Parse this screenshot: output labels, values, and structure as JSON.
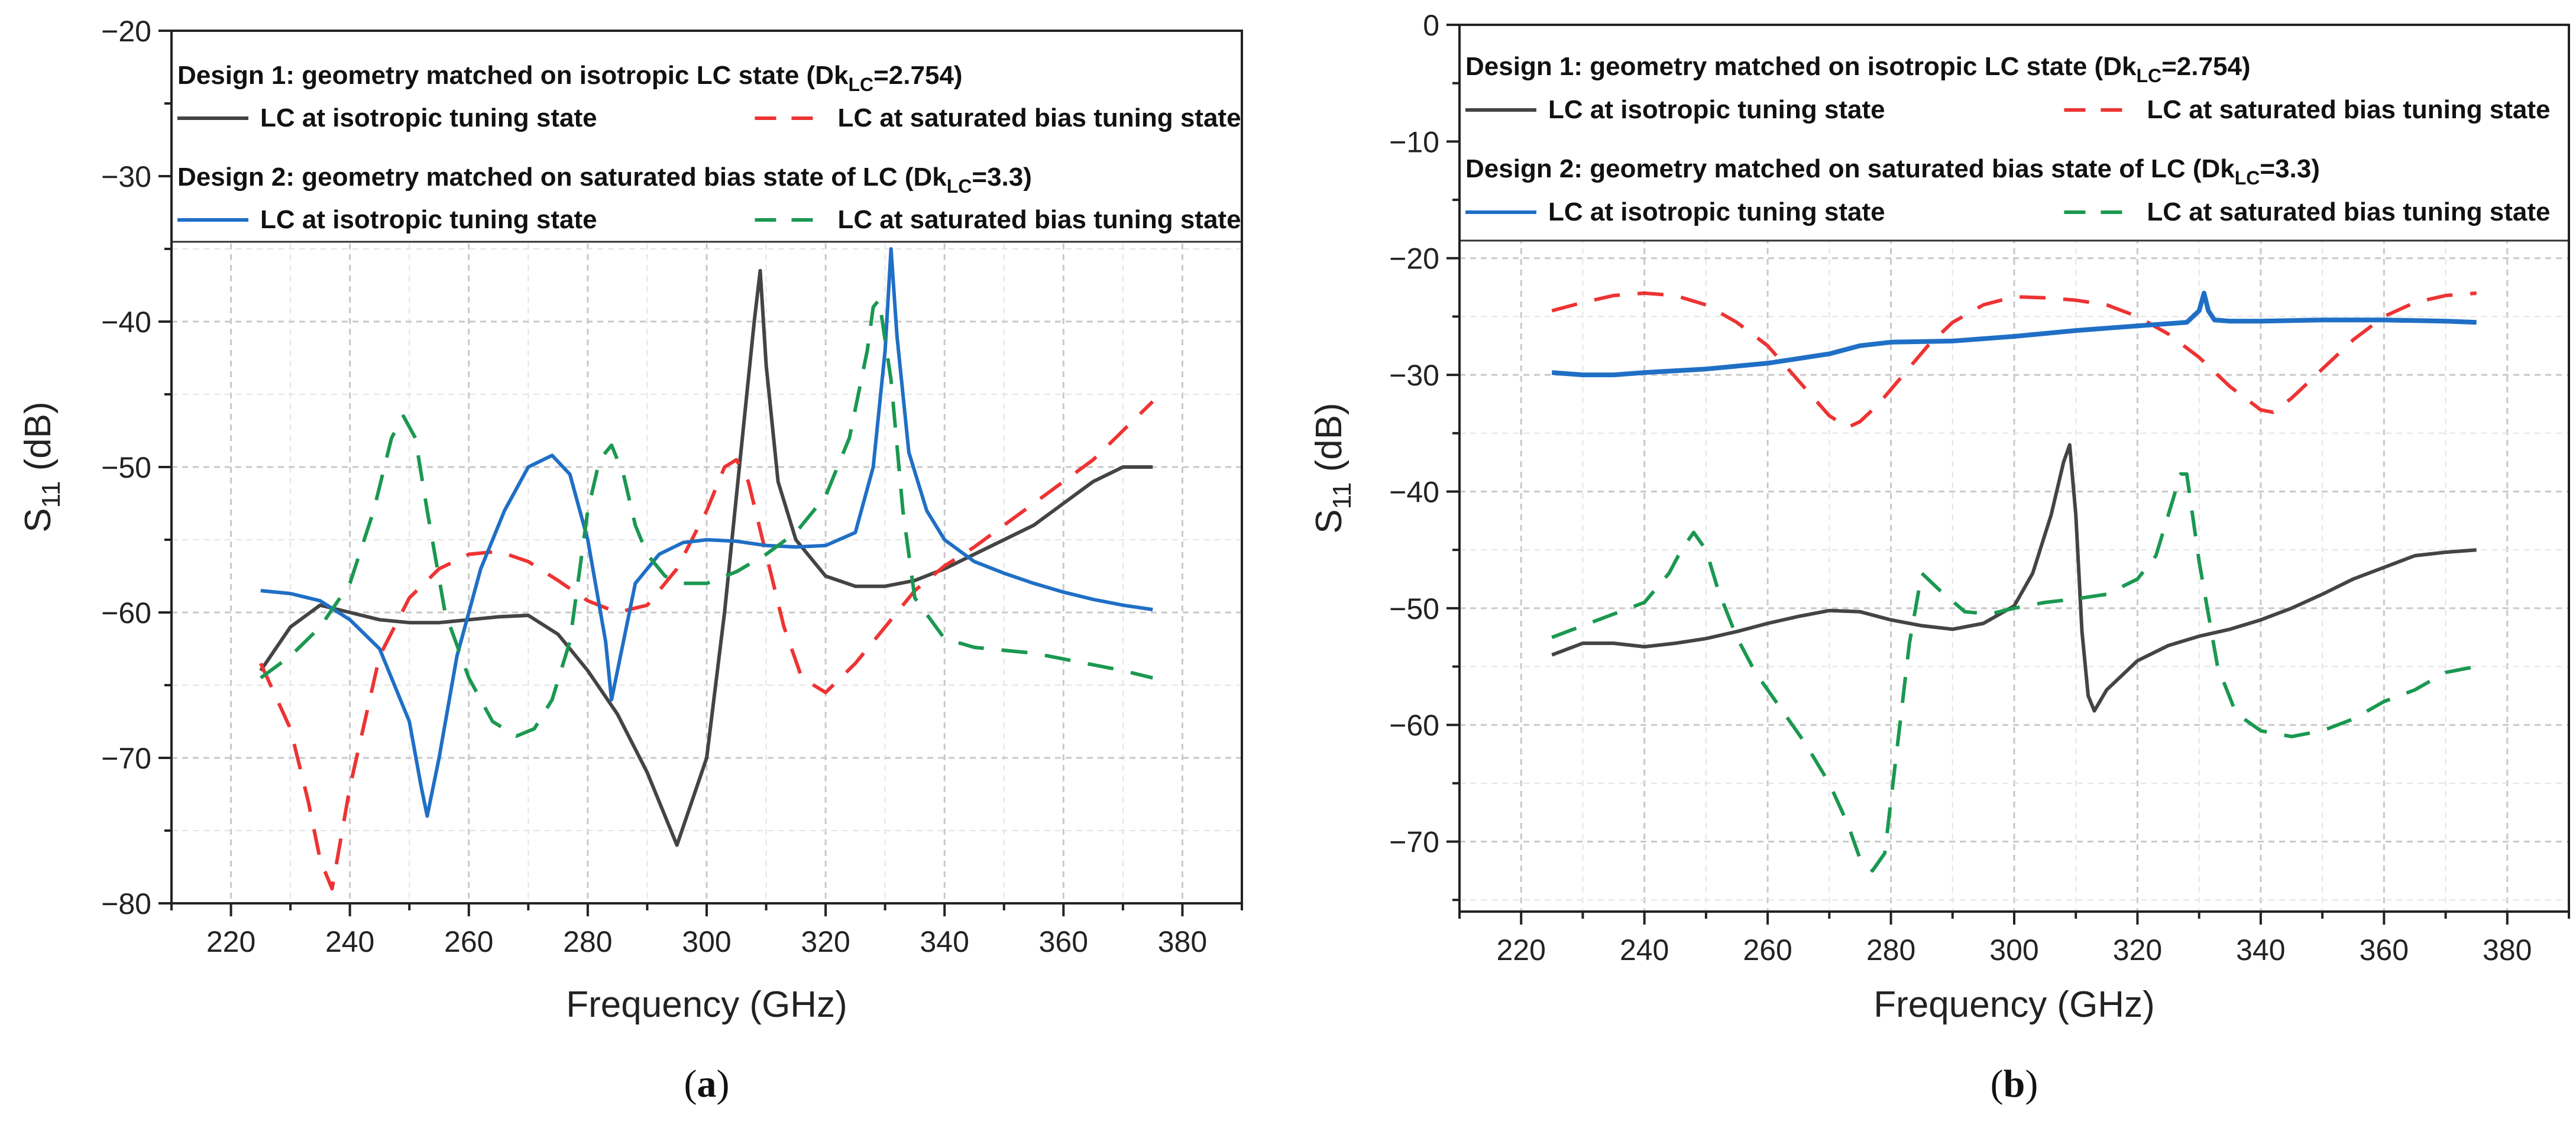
{
  "chart_data": [
    {
      "type": "line",
      "panel_label": "(a)",
      "panel_letter": "a",
      "xlabel": "Frequency (GHz)",
      "ylabel_main": "S",
      "ylabel_sub": "11",
      "ylabel_tail": " (dB)",
      "xlim": [
        210,
        390
      ],
      "ylim": [
        -80,
        -20
      ],
      "xticks": [
        220,
        240,
        260,
        280,
        300,
        320,
        340,
        360,
        380
      ],
      "yticks": [
        -80,
        -70,
        -60,
        -50,
        -40,
        -30,
        -20
      ],
      "grid": true,
      "legend": {
        "position": "top",
        "group1": {
          "prefix": "Design 1: geometry matched on isotropic LC state (Dk",
          "sub": "LC",
          "suffix": "=2.754)"
        },
        "group2": {
          "prefix": "Design 2: geometry matched on saturated bias state of LC (Dk",
          "sub": "LC",
          "suffix": "=3.3)"
        }
      },
      "series": [
        {
          "name": "LC at isotropic tuning state",
          "group": 1,
          "color": "#444444",
          "dash": "solid",
          "x": [
            225,
            230,
            235,
            240,
            245,
            250,
            255,
            260,
            265,
            270,
            275,
            280,
            285,
            290,
            295,
            300,
            303,
            306,
            308,
            309,
            310,
            312,
            315,
            320,
            325,
            330,
            335,
            340,
            345,
            350,
            355,
            360,
            365,
            370,
            375
          ],
          "y": [
            -64,
            -61,
            -59.5,
            -60,
            -60.5,
            -60.7,
            -60.7,
            -60.5,
            -60.3,
            -60.2,
            -61.5,
            -64,
            -67,
            -71,
            -76,
            -70,
            -60,
            -48,
            -40,
            -36.5,
            -43,
            -51,
            -55,
            -57.5,
            -58.2,
            -58.2,
            -57.8,
            -57,
            -56,
            -55,
            -54,
            -52.5,
            -51,
            -50,
            -50
          ]
        },
        {
          "name": "LC at saturated bias tuning state",
          "group": 1,
          "color": "#ee3333",
          "dash": "dashed",
          "x": [
            225,
            230,
            233,
            235,
            237,
            240,
            245,
            250,
            255,
            260,
            265,
            270,
            275,
            280,
            285,
            290,
            295,
            300,
            303,
            305,
            307,
            310,
            313,
            316,
            320,
            325,
            330,
            335,
            340,
            345,
            350,
            355,
            360,
            365,
            370,
            375
          ],
          "y": [
            -63.5,
            -68,
            -73,
            -77,
            -79,
            -72,
            -63,
            -59,
            -57,
            -56,
            -55.8,
            -56.5,
            -57.8,
            -59.2,
            -60,
            -59.5,
            -57,
            -53,
            -50,
            -49.5,
            -51,
            -56,
            -61,
            -64.5,
            -65.5,
            -63.5,
            -61,
            -58.5,
            -56.8,
            -55.5,
            -54,
            -52.5,
            -51,
            -49.5,
            -47.5,
            -45.5
          ]
        },
        {
          "name": "LC at isotropic tuning state",
          "group": 2,
          "color": "#1f6fc5",
          "dash": "solid",
          "x": [
            225,
            230,
            235,
            240,
            245,
            250,
            252,
            253,
            255,
            258,
            262,
            266,
            270,
            274,
            277,
            280,
            283,
            284,
            286,
            288,
            292,
            296,
            300,
            305,
            310,
            315,
            320,
            325,
            328,
            330,
            331,
            332,
            334,
            337,
            340,
            345,
            350,
            355,
            360,
            365,
            370,
            375
          ],
          "y": [
            -58.5,
            -58.7,
            -59.2,
            -60.5,
            -62.5,
            -67.5,
            -72,
            -74,
            -70,
            -63,
            -57,
            -53,
            -50,
            -49.2,
            -50.5,
            -55,
            -62,
            -66,
            -62,
            -58,
            -56,
            -55.2,
            -55,
            -55.1,
            -55.4,
            -55.5,
            -55.4,
            -54.5,
            -50,
            -42,
            -35,
            -41,
            -49,
            -53,
            -55,
            -56.5,
            -57.3,
            -58,
            -58.6,
            -59.1,
            -59.5,
            -59.8
          ]
        },
        {
          "name": "LC at saturated bias tuning state",
          "group": 2,
          "color": "#1a9850",
          "dash": "dashed",
          "x": [
            225,
            230,
            235,
            240,
            244,
            247,
            249,
            251,
            253,
            256,
            260,
            264,
            268,
            271,
            274,
            277,
            280,
            282,
            284,
            286,
            288,
            290,
            293,
            296,
            300,
            305,
            310,
            315,
            320,
            324,
            327,
            328,
            329,
            331,
            333,
            335,
            340,
            345,
            350,
            355,
            360,
            365,
            370,
            375
          ],
          "y": [
            -64.5,
            -63,
            -61,
            -58,
            -53,
            -48,
            -46.5,
            -48,
            -53,
            -60,
            -64.5,
            -67.5,
            -68.5,
            -68,
            -66,
            -62,
            -53,
            -49.5,
            -48.5,
            -50.5,
            -54,
            -56,
            -57.5,
            -58,
            -58,
            -57.2,
            -56,
            -54.5,
            -52,
            -48,
            -42,
            -39,
            -38.5,
            -44,
            -53,
            -59,
            -61.8,
            -62.4,
            -62.6,
            -62.8,
            -63.2,
            -63.6,
            -64,
            -64.5
          ]
        }
      ]
    },
    {
      "type": "line",
      "panel_label": "(b)",
      "panel_letter": "b",
      "xlabel": "Frequency (GHz)",
      "ylabel_main": "S",
      "ylabel_sub": "11",
      "ylabel_tail": " (dB)",
      "xlim": [
        210,
        390
      ],
      "ylim": [
        -76,
        0
      ],
      "xticks": [
        220,
        240,
        260,
        280,
        300,
        320,
        340,
        360,
        380
      ],
      "yticks": [
        -70,
        -60,
        -50,
        -40,
        -30,
        -20,
        -10,
        0
      ],
      "grid": true,
      "legend": {
        "position": "top",
        "group1": {
          "prefix": "Design 1: geometry matched on isotropic LC state (Dk",
          "sub": "LC",
          "suffix": "=2.754)"
        },
        "group2": {
          "prefix": "Design 2: geometry matched on saturated bias state of LC (Dk",
          "sub": "LC",
          "suffix": "=3.3)"
        }
      },
      "series": [
        {
          "name": "LC at isotropic tuning state",
          "group": 1,
          "color": "#444444",
          "dash": "solid",
          "x": [
            225,
            230,
            235,
            240,
            245,
            250,
            255,
            260,
            265,
            270,
            275,
            280,
            285,
            290,
            295,
            300,
            303,
            306,
            308,
            309,
            310,
            311,
            312,
            313,
            315,
            320,
            325,
            330,
            335,
            340,
            345,
            350,
            355,
            360,
            365,
            370,
            375
          ],
          "y": [
            -54,
            -53,
            -53,
            -53.3,
            -53,
            -52.6,
            -52,
            -51.3,
            -50.7,
            -50.2,
            -50.3,
            -51,
            -51.5,
            -51.8,
            -51.3,
            -49.8,
            -47,
            -42,
            -37.5,
            -36,
            -42,
            -52,
            -57.5,
            -58.8,
            -57,
            -54.5,
            -53.2,
            -52.4,
            -51.8,
            -51,
            -50,
            -48.8,
            -47.5,
            -46.5,
            -45.5,
            -45.2,
            -45
          ]
        },
        {
          "name": "LC at saturated bias tuning state",
          "group": 1,
          "color": "#ee3333",
          "dash": "dashed",
          "x": [
            225,
            230,
            235,
            240,
            245,
            250,
            255,
            260,
            265,
            270,
            273,
            275,
            278,
            282,
            286,
            290,
            295,
            300,
            305,
            310,
            315,
            320,
            325,
            330,
            335,
            340,
            342,
            345,
            350,
            355,
            360,
            365,
            370,
            375
          ],
          "y": [
            -24.5,
            -23.8,
            -23.2,
            -23,
            -23.2,
            -24,
            -25.5,
            -27.5,
            -30.5,
            -33.5,
            -34.5,
            -34,
            -32.5,
            -30,
            -27.5,
            -25.5,
            -24,
            -23.3,
            -23.4,
            -23.6,
            -24,
            -25,
            -26.5,
            -28.5,
            -31,
            -33,
            -33.2,
            -32,
            -29.5,
            -27,
            -25,
            -23.8,
            -23.2,
            -23
          ]
        },
        {
          "name": "LC at isotropic tuning state",
          "group": 2,
          "color": "#1f6fc5",
          "dash": "solid",
          "x": [
            225,
            230,
            235,
            240,
            250,
            260,
            270,
            275,
            280,
            290,
            300,
            310,
            320,
            328,
            330,
            330.8,
            331.5,
            332.5,
            335,
            340,
            350,
            360,
            370,
            375
          ],
          "y": [
            -29.8,
            -30,
            -30,
            -29.8,
            -29.5,
            -29,
            -28.2,
            -27.5,
            -27.2,
            -27.1,
            -26.7,
            -26.2,
            -25.8,
            -25.5,
            -24.5,
            -23,
            -24.5,
            -25.3,
            -25.4,
            -25.4,
            -25.3,
            -25.3,
            -25.4,
            -25.5
          ]
        },
        {
          "name": "LC at saturated bias tuning state",
          "group": 2,
          "color": "#1a9850",
          "dash": "dashed",
          "x": [
            225,
            230,
            235,
            240,
            244,
            246,
            248,
            250,
            252,
            255,
            258,
            262,
            266,
            270,
            273,
            275,
            277,
            279,
            281,
            283,
            285,
            288,
            292,
            296,
            300,
            305,
            310,
            315,
            320,
            323,
            325,
            327,
            328,
            330,
            333,
            336,
            340,
            345,
            350,
            355,
            360,
            365,
            370,
            375
          ],
          "y": [
            -52.5,
            -51.5,
            -50.5,
            -49.5,
            -47,
            -45,
            -43.5,
            -45,
            -48.5,
            -52.5,
            -55.5,
            -58.5,
            -61.5,
            -65,
            -68.5,
            -71.5,
            -72.5,
            -71,
            -62,
            -53,
            -47,
            -48.5,
            -50.3,
            -50.5,
            -50,
            -49.5,
            -49.2,
            -48.8,
            -47.5,
            -45.5,
            -42,
            -38.5,
            -38.5,
            -46,
            -55,
            -59,
            -60.5,
            -61,
            -60.5,
            -59.5,
            -58,
            -57,
            -55.5,
            -55
          ]
        }
      ]
    }
  ]
}
